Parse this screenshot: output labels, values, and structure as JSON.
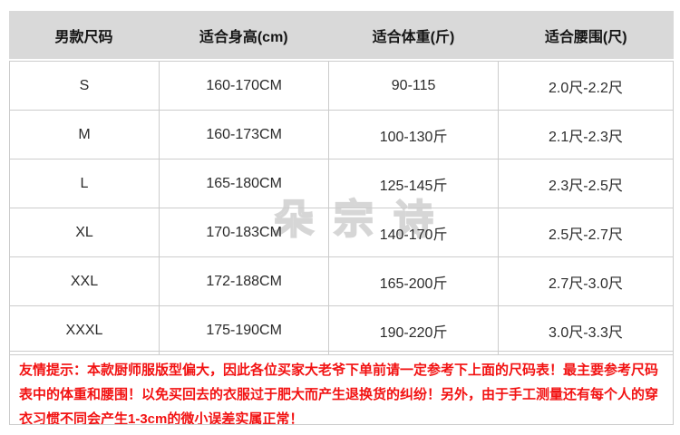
{
  "size_chart": {
    "headers": [
      "男款尺码",
      "适合身高(cm)",
      "适合体重(斤)",
      "适合腰围(尺)"
    ],
    "rows": [
      {
        "size": "S",
        "height": "160-170CM",
        "weight": "90-115",
        "waist": "2.0尺-2.2尺"
      },
      {
        "size": "M",
        "height": "160-173CM",
        "weight": "100-130斤",
        "waist": "2.1尺-2.3尺"
      },
      {
        "size": "L",
        "height": "165-180CM",
        "weight": "125-145斤",
        "waist": "2.3尺-2.5尺"
      },
      {
        "size": "XL",
        "height": "170-183CM",
        "weight": "140-170斤",
        "waist": "2.5尺-2.7尺"
      },
      {
        "size": "XXL",
        "height": "172-188CM",
        "weight": "165-200斤",
        "waist": "2.7尺-3.0尺"
      },
      {
        "size": "XXXL",
        "height": "175-190CM",
        "weight": "190-220斤",
        "waist": "3.0尺-3.3尺"
      }
    ]
  },
  "watermark_text": "朵宗诗",
  "notice": "友情提示：本款厨师服版型偏大，因此各位买家大老爷下单前请一定参考下上面的尺码表！最主要参考尺码表中的体重和腰围！以免买回去的衣服过于肥大而产生退换货的纠纷！另外，由于手工测量还有每个人的穿衣习惯不同会产生1-3cm的微小误差实属正常！",
  "colors": {
    "header_background": "#d9d9d9",
    "table_border": "#cccccc",
    "body_text": "#2b2b2b",
    "notice_text": "#f21212",
    "watermark_outline": "#d6d6d6"
  }
}
